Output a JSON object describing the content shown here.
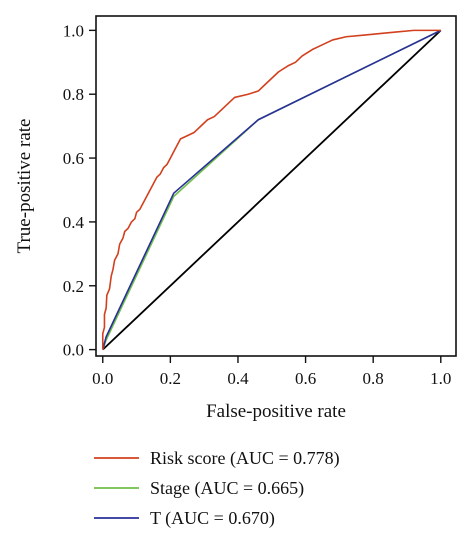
{
  "chart_data": {
    "type": "line",
    "title": "",
    "xlabel": "False-positive rate",
    "ylabel": "True-positive rate",
    "xlim": [
      -0.02,
      1.045
    ],
    "ylim": [
      -0.02,
      1.045
    ],
    "x_ticks": [
      0.0,
      0.2,
      0.4,
      0.6,
      0.8,
      1.0
    ],
    "x_tick_labels": [
      "0.0",
      "0.2",
      "0.4",
      "0.6",
      "0.8",
      "1.0"
    ],
    "y_ticks": [
      0.0,
      0.2,
      0.4,
      0.6,
      0.8,
      1.0
    ],
    "y_tick_labels": [
      "0.0",
      "0.2",
      "0.4",
      "0.6",
      "0.8",
      "1.0"
    ],
    "grid": false,
    "legend_position": "bottom",
    "reference_line": {
      "x": [
        0,
        1
      ],
      "y": [
        0,
        1
      ],
      "color": "#000000"
    },
    "series": [
      {
        "name": "Risk score (AUC = 0.778)",
        "color": "#d2401e",
        "points": [
          [
            0.0,
            0.0
          ],
          [
            0.0,
            0.05
          ],
          [
            0.005,
            0.07
          ],
          [
            0.005,
            0.11
          ],
          [
            0.01,
            0.13
          ],
          [
            0.012,
            0.17
          ],
          [
            0.02,
            0.19
          ],
          [
            0.025,
            0.23
          ],
          [
            0.03,
            0.25
          ],
          [
            0.035,
            0.28
          ],
          [
            0.045,
            0.3
          ],
          [
            0.05,
            0.33
          ],
          [
            0.06,
            0.35
          ],
          [
            0.065,
            0.37
          ],
          [
            0.075,
            0.38
          ],
          [
            0.085,
            0.4
          ],
          [
            0.095,
            0.41
          ],
          [
            0.1,
            0.43
          ],
          [
            0.11,
            0.44
          ],
          [
            0.12,
            0.46
          ],
          [
            0.13,
            0.48
          ],
          [
            0.14,
            0.5
          ],
          [
            0.15,
            0.52
          ],
          [
            0.16,
            0.54
          ],
          [
            0.17,
            0.55
          ],
          [
            0.18,
            0.57
          ],
          [
            0.19,
            0.58
          ],
          [
            0.2,
            0.6
          ],
          [
            0.21,
            0.62
          ],
          [
            0.22,
            0.64
          ],
          [
            0.23,
            0.66
          ],
          [
            0.25,
            0.67
          ],
          [
            0.27,
            0.68
          ],
          [
            0.29,
            0.7
          ],
          [
            0.31,
            0.72
          ],
          [
            0.33,
            0.73
          ],
          [
            0.35,
            0.75
          ],
          [
            0.37,
            0.77
          ],
          [
            0.39,
            0.79
          ],
          [
            0.43,
            0.8
          ],
          [
            0.46,
            0.81
          ],
          [
            0.48,
            0.83
          ],
          [
            0.5,
            0.85
          ],
          [
            0.52,
            0.87
          ],
          [
            0.55,
            0.89
          ],
          [
            0.57,
            0.9
          ],
          [
            0.59,
            0.92
          ],
          [
            0.62,
            0.94
          ],
          [
            0.64,
            0.95
          ],
          [
            0.68,
            0.97
          ],
          [
            0.72,
            0.98
          ],
          [
            0.77,
            0.985
          ],
          [
            0.82,
            0.99
          ],
          [
            0.87,
            0.995
          ],
          [
            0.92,
            1.0
          ],
          [
            0.96,
            1.0
          ],
          [
            1.0,
            1.0
          ]
        ]
      },
      {
        "name": "Stage (AUC = 0.665)",
        "color": "#6fbf4a",
        "points": [
          [
            0.0,
            0.0
          ],
          [
            0.01,
            0.03
          ],
          [
            0.21,
            0.48
          ],
          [
            0.46,
            0.72
          ],
          [
            1.0,
            1.0
          ]
        ]
      },
      {
        "name": "T (AUC = 0.670)",
        "color": "#2a2f9a",
        "points": [
          [
            0.0,
            0.0
          ],
          [
            0.01,
            0.04
          ],
          [
            0.21,
            0.49
          ],
          [
            0.46,
            0.72
          ],
          [
            1.0,
            1.0
          ]
        ]
      }
    ]
  }
}
